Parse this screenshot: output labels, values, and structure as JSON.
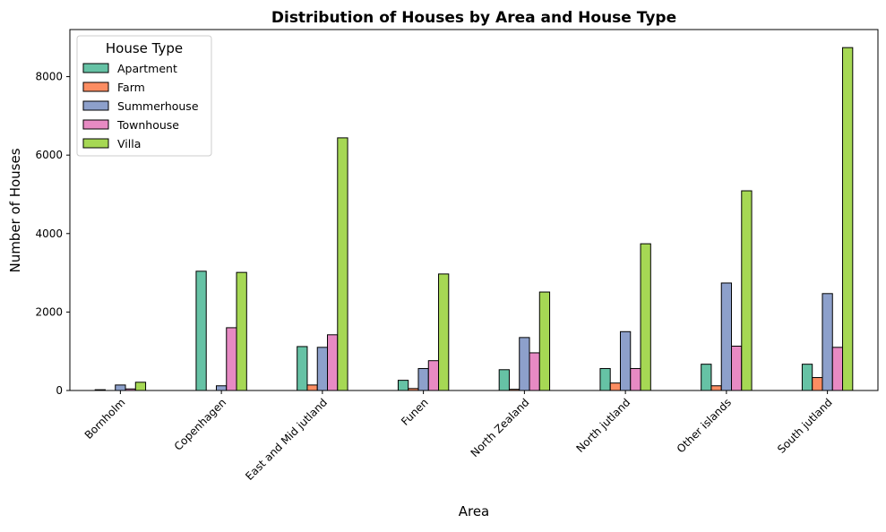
{
  "chart_data": {
    "type": "bar",
    "title": "Distribution of Houses by Area and House Type",
    "x_label": "Area",
    "y_label": "Number of Houses",
    "categories": [
      "Bornholm",
      "Copenhagen",
      "East and Mid jutland",
      "Funen",
      "North Zealand",
      "North jutland",
      "Other islands",
      "South jutland"
    ],
    "series": [
      {
        "name": "Apartment",
        "color": "#66c2a5",
        "values": [
          20,
          3040,
          1120,
          260,
          530,
          560,
          670,
          670
        ]
      },
      {
        "name": "Farm",
        "color": "#fc8d62",
        "values": [
          0,
          0,
          140,
          50,
          30,
          190,
          120,
          330
        ]
      },
      {
        "name": "Summerhouse",
        "color": "#8da0cb",
        "values": [
          140,
          120,
          1100,
          560,
          1350,
          1500,
          2740,
          2470
        ]
      },
      {
        "name": "Townhouse",
        "color": "#e78ac3",
        "values": [
          40,
          1600,
          1420,
          760,
          960,
          560,
          1130,
          1100
        ]
      },
      {
        "name": "Villa",
        "color": "#a6d854",
        "values": [
          210,
          3010,
          6440,
          2970,
          2510,
          3740,
          5090,
          8740
        ]
      }
    ],
    "legend_title": "House Type",
    "legend": "upper left",
    "ylim": [
      0,
      9200
    ],
    "yticks": [
      0,
      2000,
      4000,
      6000,
      8000
    ],
    "grid": false
  }
}
